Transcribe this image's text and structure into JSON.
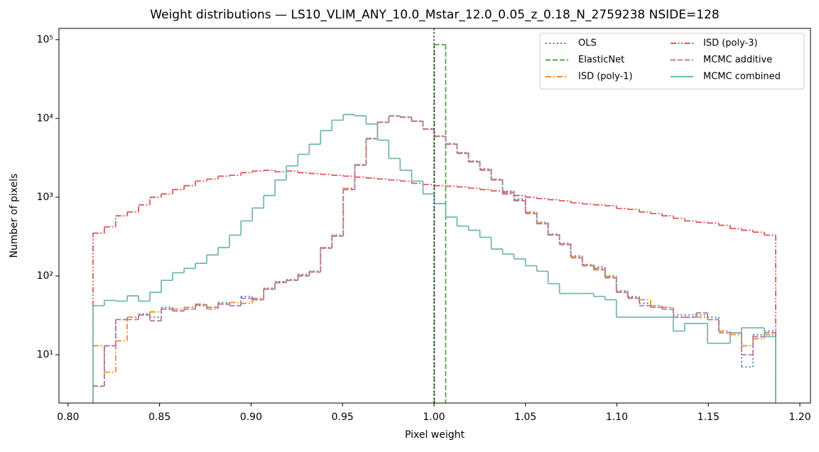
{
  "chart_data": {
    "type": "histogram",
    "title": "Weight distributions — LS10_VLIM_ANY_10.0_Mstar_12.0_0.05_z_0.18_N_2759238  NSIDE=128",
    "x_label": "Pixel weight",
    "y_label": "Number of pixels",
    "log_y": true,
    "legend_position": "upper-right",
    "legend_columns": 2,
    "reference_line": 1.0,
    "xlim": [
      0.795,
      1.2058
    ],
    "ylim": [
      2.44,
      139000
    ],
    "xticks": [
      {
        "value": 0.8,
        "label": "0.80"
      },
      {
        "value": 0.85,
        "label": "0.85"
      },
      {
        "value": 0.9,
        "label": "0.90"
      },
      {
        "value": 0.95,
        "label": "0.95"
      },
      {
        "value": 1.0,
        "label": "1.00"
      },
      {
        "value": 1.05,
        "label": "1.05"
      },
      {
        "value": 1.1,
        "label": "1.10"
      },
      {
        "value": 1.15,
        "label": "1.15"
      },
      {
        "value": 1.2,
        "label": "1.20"
      }
    ],
    "yticks": [
      {
        "value": 10,
        "label": "10¹"
      },
      {
        "value": 100,
        "label": "10²"
      },
      {
        "value": 1000,
        "label": "10³"
      },
      {
        "value": 10000,
        "label": "10⁴"
      },
      {
        "value": 100000,
        "label": "10⁵"
      }
    ],
    "bins": [
      0.8136,
      0.8198,
      0.826,
      0.8323,
      0.8385,
      0.8447,
      0.8509,
      0.8571,
      0.8634,
      0.8696,
      0.8758,
      0.882,
      0.8882,
      0.8945,
      0.9007,
      0.9069,
      0.9131,
      0.9193,
      0.9256,
      0.9318,
      0.938,
      0.9442,
      0.9504,
      0.9567,
      0.9629,
      0.9691,
      0.9753,
      0.9815,
      0.9878,
      0.994,
      1.0002,
      1.0064,
      1.0126,
      1.0189,
      1.0251,
      1.0313,
      1.0375,
      1.0437,
      1.05,
      1.0562,
      1.0624,
      1.0686,
      1.0748,
      1.0811,
      1.0873,
      1.0935,
      1.0997,
      1.1059,
      1.1122,
      1.1184,
      1.1246,
      1.1308,
      1.137,
      1.1433,
      1.1495,
      1.1557,
      1.1619,
      1.1681,
      1.1744,
      1.1806,
      1.1868
    ],
    "series": [
      {
        "name": "OLS",
        "color": "#4e79a7",
        "linestyle": "dotted",
        "values": [
          4,
          13,
          28,
          30,
          33,
          30,
          40,
          36,
          40,
          42,
          40,
          46,
          42,
          55,
          50,
          70,
          85,
          90,
          105,
          115,
          230,
          330,
          1300,
          2600,
          5600,
          9000,
          10800,
          10300,
          9300,
          7400,
          6000,
          4800,
          3700,
          2900,
          2300,
          1700,
          1200,
          950,
          650,
          480,
          340,
          260,
          180,
          140,
          130,
          100,
          65,
          55,
          45,
          42,
          40,
          32,
          32,
          32,
          30,
          20,
          18,
          7,
          18,
          20
        ]
      },
      {
        "name": "ElasticNet",
        "color": "#59a14f",
        "linestyle": "dashed",
        "values": [
          0,
          0,
          0,
          0,
          0,
          0,
          0,
          0,
          0,
          0,
          0,
          0,
          0,
          0,
          0,
          0,
          0,
          0,
          0,
          0,
          0,
          0,
          0,
          0,
          0,
          0,
          0,
          0,
          0,
          0,
          86500,
          0,
          0,
          0,
          0,
          0,
          0,
          0,
          0,
          0,
          0,
          0,
          0,
          0,
          0,
          0,
          0,
          0,
          0,
          0,
          0,
          0,
          0,
          0,
          0,
          0,
          0,
          0,
          0,
          0
        ]
      },
      {
        "name": "ISD (poly-1)",
        "color": "#f28e2b",
        "linestyle": "dashdot",
        "values": [
          13,
          6,
          15,
          30,
          32,
          35,
          38,
          38,
          40,
          44,
          38,
          44,
          46,
          45,
          52,
          68,
          82,
          88,
          102,
          113,
          228,
          325,
          1280,
          2580,
          5550,
          8950,
          10750,
          10350,
          9250,
          7350,
          5950,
          4750,
          3650,
          2850,
          2250,
          1680,
          1180,
          920,
          640,
          470,
          335,
          255,
          175,
          138,
          125,
          98,
          63,
          53,
          50,
          42,
          40,
          30,
          30,
          30,
          28,
          20,
          18,
          13,
          16,
          18
        ]
      },
      {
        "name": "ISD (poly-3)",
        "color": "#e15759",
        "linestyle": "dashdotdot",
        "values": [
          350,
          420,
          580,
          650,
          800,
          1000,
          1100,
          1250,
          1400,
          1600,
          1700,
          1850,
          1900,
          2050,
          2150,
          2200,
          2100,
          2150,
          2050,
          2000,
          1950,
          1900,
          1850,
          1800,
          1750,
          1700,
          1650,
          1600,
          1500,
          1450,
          1400,
          1380,
          1350,
          1300,
          1250,
          1200,
          1100,
          1050,
          1000,
          960,
          930,
          900,
          850,
          820,
          800,
          780,
          720,
          700,
          650,
          620,
          580,
          540,
          500,
          480,
          470,
          440,
          400,
          380,
          360,
          330
        ]
      },
      {
        "name": "MCMC additive",
        "color": "#b07aa1",
        "linestyle": "dashed",
        "values": [
          4,
          13,
          28,
          28,
          32,
          27,
          38,
          36,
          38,
          43,
          40,
          44,
          42,
          52,
          50,
          68,
          83,
          88,
          100,
          112,
          225,
          320,
          1250,
          2550,
          5500,
          8900,
          10700,
          10400,
          9200,
          7300,
          5900,
          4700,
          3600,
          2800,
          2200,
          1650,
          1150,
          900,
          620,
          460,
          330,
          250,
          170,
          135,
          120,
          95,
          62,
          52,
          42,
          40,
          38,
          30,
          30,
          34,
          28,
          19,
          19,
          10,
          17,
          19
        ]
      },
      {
        "name": "MCMC combined",
        "color": "#76b7b2",
        "linestyle": "solid",
        "values": [
          42,
          49,
          48,
          56,
          48,
          62,
          88,
          110,
          125,
          145,
          185,
          230,
          330,
          500,
          730,
          1050,
          1650,
          2500,
          3500,
          4700,
          7000,
          9500,
          11200,
          10800,
          8500,
          5300,
          3100,
          2200,
          1600,
          1100,
          830,
          560,
          430,
          380,
          310,
          220,
          190,
          165,
          135,
          115,
          80,
          60,
          60,
          60,
          55,
          50,
          30,
          30,
          30,
          30,
          30,
          20,
          25,
          25,
          14,
          14,
          19,
          22,
          22,
          17
        ]
      }
    ]
  }
}
